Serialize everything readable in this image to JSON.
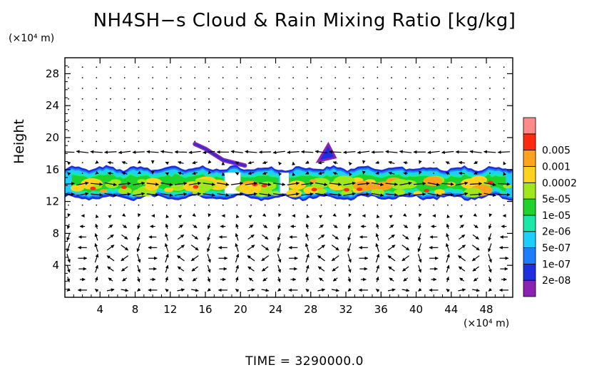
{
  "chart_data": {
    "type": "heatmap",
    "title": "NH4SH−s Cloud & Rain Mixing Ratio [kg/kg]",
    "ylabel": "Height",
    "xlabel": "",
    "y_unit": "(×10⁴ m)",
    "x_unit": "(×10⁴ m)",
    "time_label": "TIME  =  3290000.0",
    "xlim": [
      0,
      51
    ],
    "ylim": [
      0,
      30
    ],
    "x_ticks": [
      4,
      8,
      12,
      16,
      20,
      24,
      28,
      32,
      36,
      40,
      44,
      48
    ],
    "y_ticks": [
      4,
      8,
      12,
      16,
      20,
      24,
      28
    ],
    "colorbar": {
      "levels": [
        "2e-08",
        "1e-07",
        "5e-07",
        "2e-06",
        "1e-05",
        "5e-05",
        "0.0002",
        "0.001",
        "0.005"
      ],
      "colors": [
        "#8b22b4",
        "#1f2ee0",
        "#1f7dff",
        "#1ccfff",
        "#18e8a8",
        "#1ed42a",
        "#9fe81e",
        "#ffd21e",
        "#ffa21e",
        "#ff2a10",
        "#ff8a8a"
      ]
    },
    "cloud_band": {
      "y_bottom": 12.4,
      "y_top": 16.2,
      "core": [
        13.0,
        15.3
      ],
      "dry_gaps_x": [
        [
          18.2,
          20.0
        ],
        [
          24.5,
          25.5
        ]
      ],
      "upper_streak": [
        [
          14.8,
          19.2
        ],
        [
          16.0,
          18.6
        ],
        [
          18.0,
          17.2
        ],
        [
          20.5,
          16.5
        ]
      ],
      "bump_top": [
        [
          28.8,
          17.0
        ],
        [
          30.0,
          19.2
        ],
        [
          30.8,
          17.5
        ]
      ]
    },
    "shear_levels": {
      "upper_westward": [
        17.2,
        19.4
      ],
      "lower_eastward": [
        11.8,
        14.6
      ]
    },
    "convection_cells_centers_x": [
      4,
      12,
      20,
      28,
      36,
      44
    ]
  }
}
